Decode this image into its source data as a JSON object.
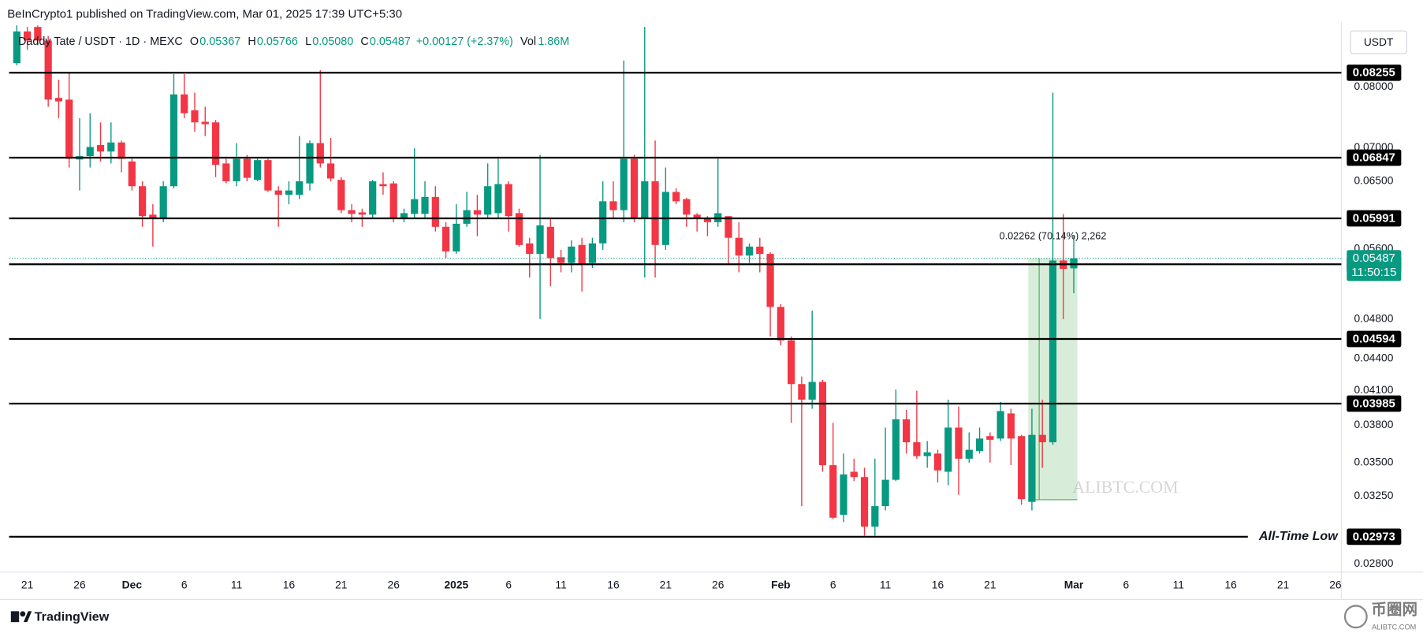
{
  "chart_data": {
    "type": "candlestick",
    "header": "BeInCrypto1 published on TradingView.com, Mar 01, 2025 17:39 UTC+5:30",
    "legend": {
      "symbol": "Daddy Tate / USDT · 1D · MEXC",
      "items": [
        {
          "key": "O",
          "value": "0.05367"
        },
        {
          "key": "H",
          "value": "0.05766"
        },
        {
          "key": "L",
          "value": "0.05080"
        },
        {
          "key": "C",
          "value": "0.05487"
        }
      ],
      "change": "+0.00127 (+2.37%)",
      "vol_key": "Vol",
      "vol": "1.86M"
    },
    "currency": "USDT",
    "dates": [
      "2024-11-20",
      "2024-11-21",
      "2024-11-22",
      "2024-11-23",
      "2024-11-24",
      "2024-11-25",
      "2024-11-26",
      "2024-11-27",
      "2024-11-28",
      "2024-11-29",
      "2024-11-30",
      "2024-12-01",
      "2024-12-02",
      "2024-12-03",
      "2024-12-04",
      "2024-12-05",
      "2024-12-06",
      "2024-12-07",
      "2024-12-08",
      "2024-12-09",
      "2024-12-10",
      "2024-12-11",
      "2024-12-12",
      "2024-12-13",
      "2024-12-14",
      "2024-12-15",
      "2024-12-16",
      "2024-12-17",
      "2024-12-18",
      "2024-12-19",
      "2024-12-20",
      "2024-12-21",
      "2024-12-22",
      "2024-12-23",
      "2024-12-24",
      "2024-12-25",
      "2024-12-26",
      "2024-12-27",
      "2024-12-28",
      "2024-12-29",
      "2024-12-30",
      "2024-12-31",
      "2025-01-01",
      "2025-01-02",
      "2025-01-03",
      "2025-01-04",
      "2025-01-05",
      "2025-01-06",
      "2025-01-07",
      "2025-01-08",
      "2025-01-09",
      "2025-01-10",
      "2025-01-11",
      "2025-01-12",
      "2025-01-13",
      "2025-01-14",
      "2025-01-15",
      "2025-01-16",
      "2025-01-17",
      "2025-01-18",
      "2025-01-19",
      "2025-01-20",
      "2025-01-21",
      "2025-01-22",
      "2025-01-23",
      "2025-01-24",
      "2025-01-25",
      "2025-01-26",
      "2025-01-27",
      "2025-01-28",
      "2025-01-29",
      "2025-01-30",
      "2025-01-31",
      "2025-02-01",
      "2025-02-02",
      "2025-02-03",
      "2025-02-04",
      "2025-02-05",
      "2025-02-06",
      "2025-02-07",
      "2025-02-08",
      "2025-02-09",
      "2025-02-10",
      "2025-02-11",
      "2025-02-12",
      "2025-02-13",
      "2025-02-14",
      "2025-02-15",
      "2025-02-16",
      "2025-02-17",
      "2025-02-18",
      "2025-02-19",
      "2025-02-20",
      "2025-02-21",
      "2025-02-22",
      "2025-02-23",
      "2025-02-24",
      "2025-02-25",
      "2025-02-26",
      "2025-02-27",
      "2025-02-28",
      "2025-03-01"
    ],
    "open": [
      0.0843,
      0.0904,
      0.0913,
      0.0886,
      0.0781,
      0.0778,
      0.0682,
      0.0687,
      0.0704,
      0.0694,
      0.0708,
      0.0679,
      0.0643,
      0.0604,
      0.06,
      0.0643,
      0.0787,
      0.076,
      0.0741,
      0.074,
      0.0676,
      0.065,
      0.0683,
      0.0652,
      0.0681,
      0.0637,
      0.0631,
      0.0631,
      0.0647,
      0.0707,
      0.0676,
      0.0652,
      0.061,
      0.0607,
      0.0604,
      0.0646,
      0.0647,
      0.06,
      0.0605,
      0.0605,
      0.0628,
      0.0588,
      0.0557,
      0.0592,
      0.061,
      0.0604,
      0.0606,
      0.0646,
      0.0606,
      0.0567,
      0.0554,
      0.0588,
      0.055,
      0.0543,
      0.0565,
      0.0543,
      0.0567,
      0.0622,
      0.061,
      0.0683,
      0.06,
      0.065,
      0.0565,
      0.0635,
      0.0625,
      0.0604,
      0.06,
      0.0594,
      0.0602,
      0.0574,
      0.0552,
      0.0563,
      0.0554,
      0.0493,
      0.0458,
      0.0416,
      0.0402,
      0.0418,
      0.0348,
      0.0312,
      0.0343,
      0.0339,
      0.0304,
      0.0318,
      0.0337,
      0.0385,
      0.0366,
      0.0355,
      0.0357,
      0.0343,
      0.0378,
      0.0353,
      0.0359,
      0.0371,
      0.0369,
      0.039,
      0.0371,
      0.0321,
      0.0372,
      0.0366,
      0.0546,
      0.05367
    ],
    "high": [
      0.0916,
      0.0913,
      0.0916,
      0.0895,
      0.0813,
      0.0826,
      0.0747,
      0.0755,
      0.074,
      0.074,
      0.0711,
      0.0683,
      0.065,
      0.0618,
      0.065,
      0.0823,
      0.0823,
      0.079,
      0.0766,
      0.0744,
      0.0683,
      0.0707,
      0.0689,
      0.0683,
      0.0683,
      0.0643,
      0.065,
      0.0718,
      0.0711,
      0.083,
      0.0715,
      0.0656,
      0.0618,
      0.0612,
      0.0652,
      0.0663,
      0.065,
      0.0612,
      0.0699,
      0.065,
      0.0643,
      0.0594,
      0.0618,
      0.0635,
      0.0631,
      0.0676,
      0.0683,
      0.065,
      0.0612,
      0.0574,
      0.0689,
      0.06,
      0.0559,
      0.0571,
      0.0574,
      0.0574,
      0.065,
      0.065,
      0.0848,
      0.0689,
      0.0913,
      0.0711,
      0.067,
      0.064,
      0.0627,
      0.0606,
      0.0602,
      0.0683,
      0.0602,
      0.0594,
      0.0567,
      0.0574,
      0.0556,
      0.0496,
      0.0462,
      0.0423,
      0.0489,
      0.042,
      0.0382,
      0.0357,
      0.0353,
      0.0346,
      0.0353,
      0.0378,
      0.0411,
      0.0393,
      0.041,
      0.0367,
      0.036,
      0.0402,
      0.0396,
      0.0374,
      0.0378,
      0.0374,
      0.04,
      0.0394,
      0.0372,
      0.0394,
      0.0402,
      0.079,
      0.0605,
      0.05766
    ],
    "low": [
      0.0839,
      0.0868,
      0.0877,
      0.0766,
      0.0747,
      0.067,
      0.0637,
      0.067,
      0.0679,
      0.0676,
      0.0663,
      0.0637,
      0.0588,
      0.0563,
      0.0594,
      0.064,
      0.0747,
      0.0725,
      0.0718,
      0.0656,
      0.0647,
      0.0643,
      0.065,
      0.065,
      0.0635,
      0.0588,
      0.0618,
      0.0625,
      0.0637,
      0.067,
      0.065,
      0.0606,
      0.0594,
      0.0588,
      0.06,
      0.0631,
      0.0594,
      0.0594,
      0.06,
      0.06,
      0.0582,
      0.0549,
      0.0554,
      0.0588,
      0.0576,
      0.06,
      0.06,
      0.0582,
      0.0563,
      0.0526,
      0.048,
      0.0516,
      0.0532,
      0.0532,
      0.051,
      0.0537,
      0.0559,
      0.06,
      0.0594,
      0.0594,
      0.0526,
      0.0526,
      0.0559,
      0.0618,
      0.0588,
      0.0582,
      0.0576,
      0.0588,
      0.0541,
      0.0532,
      0.0543,
      0.0532,
      0.0462,
      0.0453,
      0.0382,
      0.0318,
      0.0394,
      0.0343,
      0.0309,
      0.0307,
      0.0336,
      0.0298,
      0.0298,
      0.0315,
      0.0336,
      0.0357,
      0.0353,
      0.0346,
      0.0335,
      0.0333,
      0.0326,
      0.035,
      0.0357,
      0.035,
      0.0367,
      0.0348,
      0.0319,
      0.0315,
      0.0346,
      0.0364,
      0.048,
      0.0508
    ],
    "close": [
      0.0904,
      0.0886,
      0.0886,
      0.0778,
      0.0775,
      0.0683,
      0.0687,
      0.0701,
      0.0694,
      0.0708,
      0.0683,
      0.0643,
      0.0602,
      0.06,
      0.0643,
      0.0787,
      0.0755,
      0.074,
      0.0737,
      0.0674,
      0.065,
      0.0683,
      0.0655,
      0.0681,
      0.0637,
      0.0631,
      0.0637,
      0.065,
      0.0707,
      0.0676,
      0.0654,
      0.061,
      0.0605,
      0.0604,
      0.065,
      0.0643,
      0.06,
      0.0606,
      0.0625,
      0.0628,
      0.0588,
      0.0557,
      0.0592,
      0.061,
      0.0604,
      0.0643,
      0.0646,
      0.0602,
      0.0565,
      0.0554,
      0.059,
      0.0549,
      0.0543,
      0.0563,
      0.0541,
      0.0567,
      0.0622,
      0.061,
      0.0683,
      0.06,
      0.065,
      0.0565,
      0.0635,
      0.0622,
      0.0604,
      0.06,
      0.0594,
      0.0606,
      0.0574,
      0.0552,
      0.0563,
      0.0554,
      0.0493,
      0.0458,
      0.0416,
      0.0402,
      0.0418,
      0.0348,
      0.031,
      0.0341,
      0.0339,
      0.0304,
      0.0318,
      0.0337,
      0.0385,
      0.0366,
      0.0355,
      0.0358,
      0.0344,
      0.0378,
      0.0353,
      0.036,
      0.0369,
      0.0368,
      0.0392,
      0.0369,
      0.0323,
      0.0372,
      0.0366,
      0.0546,
      0.0536,
      0.05487
    ],
    "up_color": "#089981",
    "down_color": "#f23645",
    "log_scale": true,
    "grid": false,
    "ylim": [
      0.0275,
      0.0916
    ],
    "yticks": [
      {
        "value": 0.08,
        "label": "0.08000"
      },
      {
        "value": 0.07,
        "label": "0.07000"
      },
      {
        "value": 0.065,
        "label": "0.06500"
      },
      {
        "value": 0.056,
        "label": "0.05600"
      },
      {
        "value": 0.048,
        "label": "0.04800"
      },
      {
        "value": 0.044,
        "label": "0.04400"
      },
      {
        "value": 0.041,
        "label": "0.04100"
      },
      {
        "value": 0.038,
        "label": "0.03800"
      },
      {
        "value": 0.035,
        "label": "0.03500"
      },
      {
        "value": 0.0325,
        "label": "0.03250"
      },
      {
        "value": 0.028,
        "label": "0.02800"
      }
    ],
    "xlim": [
      "2024-11-19",
      "2025-03-27"
    ],
    "xticks": [
      {
        "value": "2024-11-21",
        "label": "21"
      },
      {
        "value": "2024-11-26",
        "label": "26"
      },
      {
        "value": "2024-12-01",
        "label": "Dec"
      },
      {
        "value": "2024-12-06",
        "label": "6"
      },
      {
        "value": "2024-12-11",
        "label": "11"
      },
      {
        "value": "2024-12-16",
        "label": "16"
      },
      {
        "value": "2024-12-21",
        "label": "21"
      },
      {
        "value": "2024-12-26",
        "label": "26"
      },
      {
        "value": "2025-01-01",
        "label": "2025"
      },
      {
        "value": "2025-01-06",
        "label": "6"
      },
      {
        "value": "2025-01-11",
        "label": "11"
      },
      {
        "value": "2025-01-16",
        "label": "16"
      },
      {
        "value": "2025-01-21",
        "label": "21"
      },
      {
        "value": "2025-01-26",
        "label": "26"
      },
      {
        "value": "2025-02-01",
        "label": "Feb"
      },
      {
        "value": "2025-02-06",
        "label": "6"
      },
      {
        "value": "2025-02-11",
        "label": "11"
      },
      {
        "value": "2025-02-16",
        "label": "16"
      },
      {
        "value": "2025-02-21",
        "label": "21"
      },
      {
        "value": "2025-03-01",
        "label": "Mar"
      },
      {
        "value": "2025-03-06",
        "label": "6"
      },
      {
        "value": "2025-03-11",
        "label": "11"
      },
      {
        "value": "2025-03-16",
        "label": "16"
      },
      {
        "value": "2025-03-21",
        "label": "21"
      },
      {
        "value": "2025-03-26",
        "label": "26"
      }
    ],
    "levels": [
      {
        "value": 0.08255
      },
      {
        "value": 0.06847
      },
      {
        "value": 0.05991
      },
      {
        "value": 0.05415
      },
      {
        "value": 0.04594
      },
      {
        "value": 0.03985
      },
      {
        "value": 0.02973,
        "note": "All-Time Low"
      }
    ],
    "level_color": "#000000",
    "countdown": "11:50:15",
    "measure": {
      "label": "0.02262 (70.14%) 2,262",
      "x": [
        "2025-02-25",
        "2025-03-01"
      ],
      "y": [
        0.03225,
        0.05487
      ],
      "color": "#4caf50"
    },
    "watermark": "ALIBTC.COM",
    "brand": "TradingView",
    "logo": "币圈网",
    "logo_sub": "ALIBTC.COM"
  }
}
